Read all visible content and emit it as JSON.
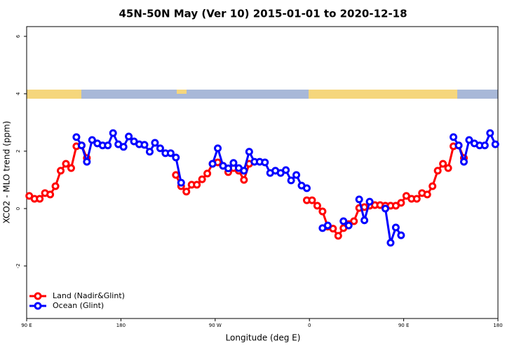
{
  "chart_data": {
    "type": "line",
    "title": "45N-50N May (Ver 10)   2015-01-01 to 2020-12-18",
    "xlabel": "Longitude (deg E)",
    "ylabel": "XCO2 - MLO trend (ppm)",
    "x": [
      92.5,
      97.5,
      102.5,
      107.5,
      112.5,
      117.5,
      122.5,
      127.5,
      132.5,
      137.5,
      142.5,
      147.5,
      152.5,
      157.5,
      162.5,
      167.5,
      172.5,
      177.5,
      182.5,
      187.5,
      192.5,
      197.5,
      202.5,
      207.5,
      212.5,
      217.5,
      222.5,
      227.5,
      232.5,
      237.5,
      242.5,
      247.5,
      252.5,
      257.5,
      262.5,
      267.5,
      272.5,
      277.5,
      282.5,
      287.5,
      292.5,
      297.5,
      302.5,
      307.5,
      312.5,
      317.5,
      322.5,
      327.5,
      332.5,
      337.5,
      342.5,
      347.5,
      352.5,
      357.5,
      362.5,
      367.5,
      372.5,
      377.5,
      382.5,
      387.5,
      392.5,
      397.5,
      402.5,
      407.5,
      412.5,
      417.5,
      422.5,
      427.5,
      432.5,
      437.5,
      442.5,
      447.5,
      452.5,
      457.5,
      462.5,
      467.5,
      472.5,
      477.5,
      482.5,
      487.5,
      492.5,
      497.5,
      502.5,
      507.5,
      512.5,
      517.5,
      522.5,
      527.5,
      532.5,
      537.5
    ],
    "series": [
      {
        "name": "Land (Nadir&Glint)",
        "color": "#ff0000",
        "values": [
          0.44,
          0.34,
          0.34,
          0.54,
          0.49,
          0.78,
          1.32,
          1.56,
          1.41,
          2.17,
          2.2,
          1.76,
          null,
          null,
          null,
          null,
          null,
          null,
          null,
          null,
          null,
          null,
          null,
          null,
          null,
          null,
          null,
          null,
          1.17,
          0.78,
          0.59,
          0.83,
          0.83,
          1.02,
          1.22,
          1.56,
          1.61,
          1.49,
          1.27,
          1.41,
          1.32,
          1.0,
          1.56,
          null,
          null,
          null,
          null,
          null,
          null,
          null,
          null,
          null,
          null,
          0.29,
          0.29,
          0.1,
          -0.1,
          -0.63,
          -0.7,
          -0.95,
          -0.68,
          -0.54,
          -0.44,
          0.02,
          0.05,
          0.1,
          0.12,
          0.12,
          0.1,
          0.1,
          0.1,
          0.2,
          0.44,
          0.34,
          0.34,
          0.54,
          0.49,
          0.78,
          1.32,
          1.56,
          1.41,
          2.17,
          2.2,
          1.76,
          null,
          null,
          null,
          null,
          null,
          null
        ]
      },
      {
        "name": "Ocean (Glint)",
        "color": "#0000ff",
        "values": [
          null,
          null,
          null,
          null,
          null,
          null,
          null,
          null,
          null,
          2.49,
          2.2,
          1.63,
          2.39,
          2.27,
          2.2,
          2.2,
          2.63,
          2.24,
          2.15,
          2.51,
          2.34,
          2.24,
          2.22,
          1.98,
          2.29,
          2.1,
          1.93,
          1.93,
          1.78,
          0.9,
          null,
          null,
          null,
          null,
          null,
          1.56,
          2.1,
          1.49,
          1.4,
          1.59,
          1.41,
          1.32,
          1.98,
          1.63,
          1.63,
          1.61,
          1.24,
          1.32,
          1.24,
          1.34,
          0.98,
          1.17,
          0.8,
          0.71,
          null,
          null,
          -0.68,
          -0.59,
          null,
          null,
          -0.44,
          -0.59,
          null,
          0.32,
          -0.41,
          0.24,
          null,
          null,
          0.0,
          -1.19,
          -0.66,
          -0.93,
          null,
          null,
          null,
          null,
          null,
          null,
          null,
          null,
          null,
          2.49,
          2.2,
          1.63,
          2.39,
          2.27,
          2.2,
          2.2,
          2.63,
          2.24
        ]
      }
    ],
    "xlim": [
      90,
      540
    ],
    "xticks": [
      {
        "value": 90,
        "label": "90 E"
      },
      180,
      {
        "value": 270,
        "label": "90 W"
      },
      {
        "value": 360,
        "label": "0"
      },
      {
        "value": 450,
        "label": "90 E"
      },
      {
        "value": 540,
        "label": "180"
      }
    ],
    "ylim": [
      -3.83,
      6.34
    ],
    "yticks": [
      -2,
      0,
      2,
      4,
      6
    ],
    "legend": "lower left"
  }
}
